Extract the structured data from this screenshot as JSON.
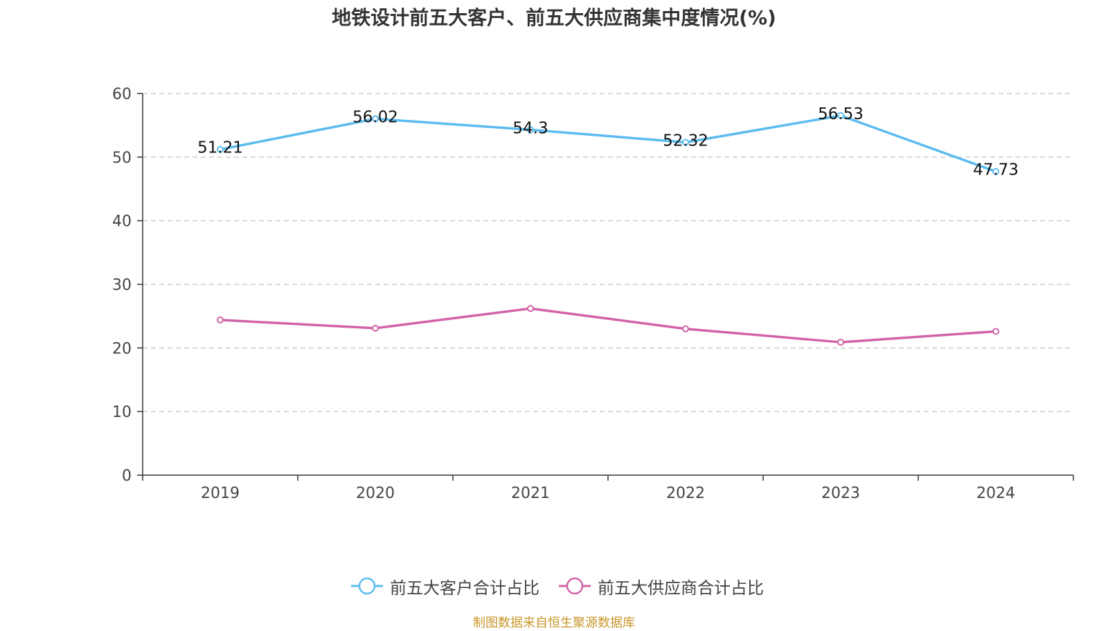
{
  "chart_data": {
    "type": "line",
    "title": "地铁设计前五大客户、前五大供应商集中度情况(%)",
    "categories": [
      "2019",
      "2020",
      "2021",
      "2022",
      "2023",
      "2024"
    ],
    "ylim": [
      0,
      60
    ],
    "yticks": [
      "0",
      "10",
      "20",
      "30",
      "40",
      "50",
      "60"
    ],
    "grid": true,
    "legend_position": "bottom-center",
    "series": [
      {
        "name": "前五大客户合计占比",
        "color": "#5bbcf0",
        "values": [
          51.21,
          56.02,
          54.3,
          52.32,
          56.53,
          47.73
        ],
        "labels": [
          "51.21",
          "56.02",
          "54.3",
          "52.32",
          "56.53",
          "47.73"
        ]
      },
      {
        "name": "前五大供应商合计占比",
        "color": "#d263a7",
        "values": [
          24.4,
          23.1,
          26.2,
          23.0,
          20.9,
          22.6
        ]
      }
    ]
  },
  "source": "制图数据来自恒生聚源数据库"
}
